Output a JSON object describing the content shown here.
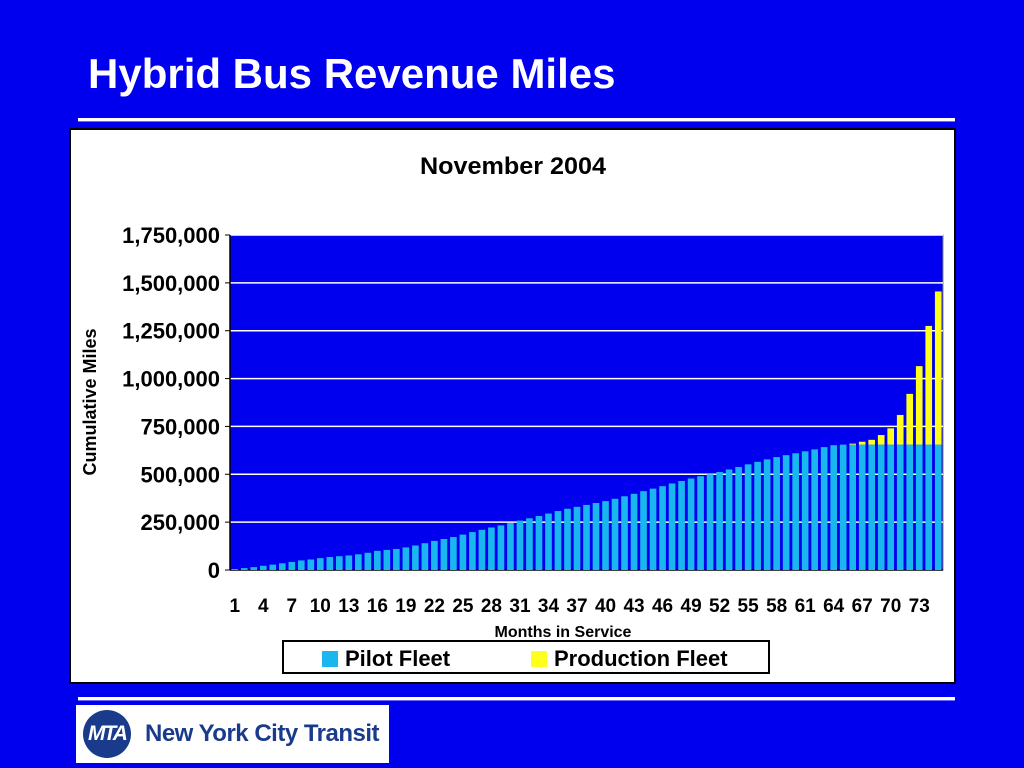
{
  "slide": {
    "title": "Hybrid Bus Revenue Miles"
  },
  "logo": {
    "mark_text": "MTA",
    "org_name": "New York City Transit"
  },
  "colors": {
    "background": "#0000ee",
    "plot_background": "#0000ee",
    "pilot_fleet": "#19b6f0",
    "production_fleet": "#ffff1e",
    "logo_blue": "#1a3b8c"
  },
  "chart_data": {
    "type": "bar",
    "stacked": true,
    "title": "November 2004",
    "xlabel": "Months in Service",
    "ylabel": "Cumulative Miles",
    "ylim": [
      0,
      1750000
    ],
    "yticks": [
      0,
      250000,
      500000,
      750000,
      1000000,
      1250000,
      1500000,
      1750000
    ],
    "ytick_labels": [
      "0",
      "250,000",
      "500,000",
      "750,000",
      "1,000,000",
      "1,250,000",
      "1,500,000",
      "1,750,000"
    ],
    "xtick_labels": [
      "1",
      "4",
      "7",
      "10",
      "13",
      "16",
      "19",
      "22",
      "25",
      "28",
      "31",
      "34",
      "37",
      "40",
      "43",
      "46",
      "49",
      "52",
      "55",
      "58",
      "61",
      "64",
      "67",
      "70",
      "73"
    ],
    "grid": "horizontal",
    "legend": "bottom",
    "categories": [
      1,
      2,
      3,
      4,
      5,
      6,
      7,
      8,
      9,
      10,
      11,
      12,
      13,
      14,
      15,
      16,
      17,
      18,
      19,
      20,
      21,
      22,
      23,
      24,
      25,
      26,
      27,
      28,
      29,
      30,
      31,
      32,
      33,
      34,
      35,
      36,
      37,
      38,
      39,
      40,
      41,
      42,
      43,
      44,
      45,
      46,
      47,
      48,
      49,
      50,
      51,
      52,
      53,
      54,
      55,
      56,
      57,
      58,
      59,
      60,
      61,
      62,
      63,
      64,
      65,
      66,
      67,
      68,
      69,
      70,
      71,
      72,
      73,
      74,
      75
    ],
    "series": [
      {
        "name": "Pilot Fleet",
        "color": "#19b6f0",
        "values": [
          5000,
          10000,
          15000,
          22000,
          28000,
          35000,
          42000,
          50000,
          55000,
          62000,
          68000,
          72000,
          76000,
          82000,
          90000,
          100000,
          105000,
          110000,
          118000,
          128000,
          140000,
          152000,
          162000,
          172000,
          185000,
          198000,
          210000,
          222000,
          233000,
          245000,
          258000,
          270000,
          282000,
          295000,
          308000,
          320000,
          330000,
          340000,
          350000,
          360000,
          372000,
          385000,
          398000,
          412000,
          425000,
          438000,
          452000,
          465000,
          478000,
          490000,
          500000,
          512000,
          525000,
          538000,
          552000,
          565000,
          578000,
          590000,
          600000,
          610000,
          620000,
          630000,
          642000,
          652000,
          655000,
          655000,
          655000,
          655000,
          655000,
          655000,
          655000,
          655000,
          655000,
          655000,
          655000
        ]
      },
      {
        "name": "Production Fleet",
        "color": "#ffff1e",
        "values": [
          0,
          0,
          0,
          0,
          0,
          0,
          0,
          0,
          0,
          0,
          0,
          0,
          0,
          0,
          0,
          0,
          0,
          0,
          0,
          0,
          0,
          0,
          0,
          0,
          0,
          0,
          0,
          0,
          0,
          0,
          0,
          0,
          0,
          0,
          0,
          0,
          0,
          0,
          0,
          0,
          0,
          0,
          0,
          0,
          0,
          0,
          0,
          0,
          0,
          0,
          0,
          0,
          0,
          0,
          0,
          0,
          0,
          0,
          0,
          0,
          0,
          0,
          0,
          0,
          0,
          5000,
          15000,
          25000,
          50000,
          85000,
          155000,
          265000,
          410000,
          620000,
          800000
        ]
      }
    ]
  }
}
